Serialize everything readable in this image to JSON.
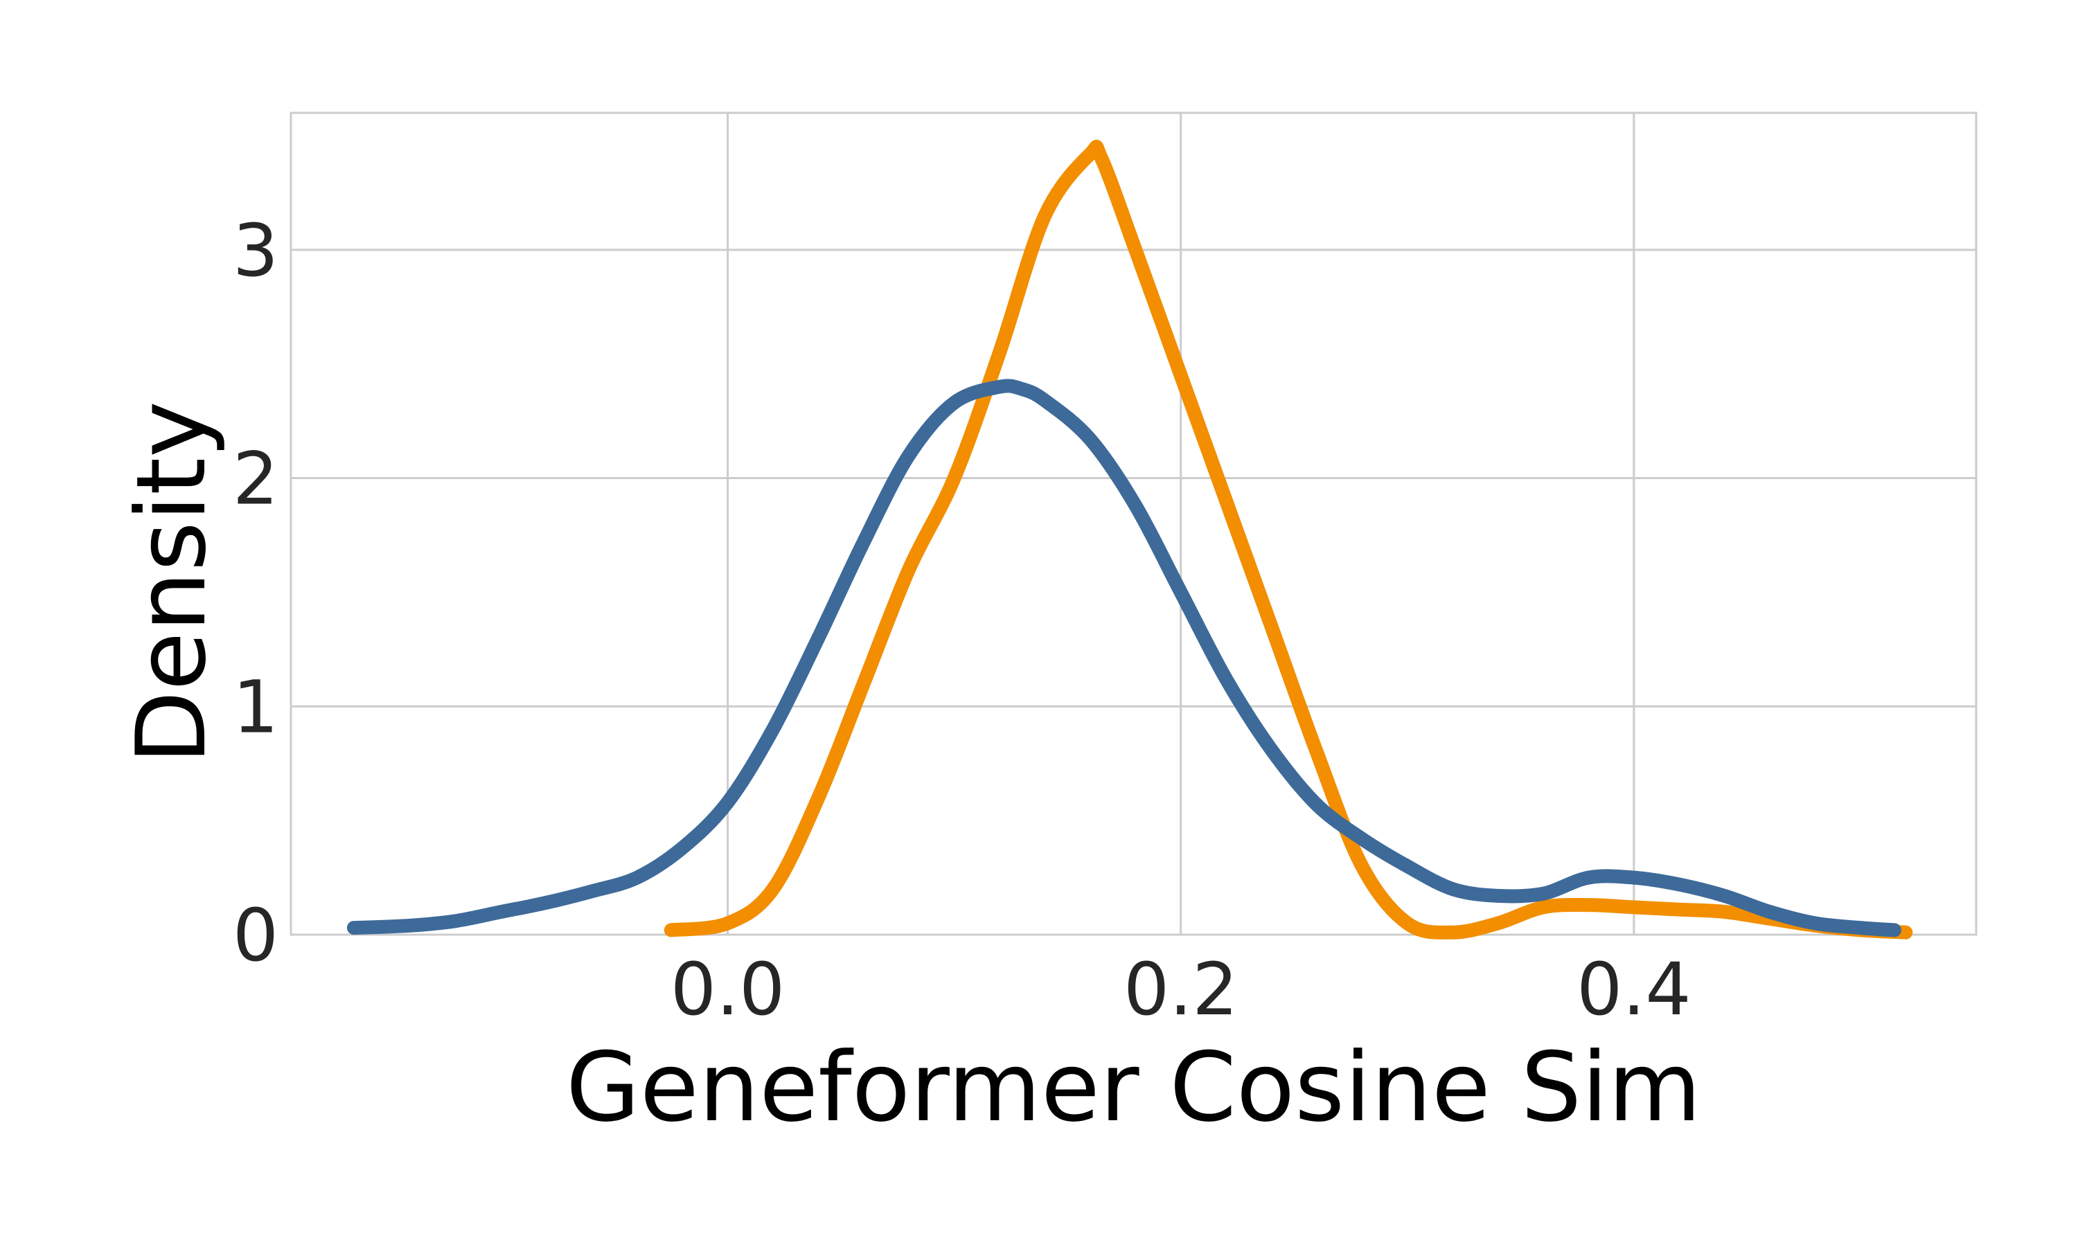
{
  "chart_data": {
    "type": "line",
    "xlabel": "Geneformer Cosine Sim",
    "ylabel": "Density",
    "xlim": [
      -0.1928,
      0.5511
    ],
    "ylim": [
      0,
      3.6
    ],
    "xticks": [
      0.0,
      0.2,
      0.4
    ],
    "xtick_labels": [
      "0.0",
      "0.2",
      "0.4"
    ],
    "yticks": [
      0,
      1,
      2,
      3
    ],
    "ytick_labels": [
      "0",
      "1",
      "2",
      "3"
    ],
    "grid": true,
    "legend": "none",
    "series": [
      {
        "color": "#f28e00",
        "x": [
          -0.025,
          0.0,
          0.02,
          0.04,
          0.06,
          0.08,
          0.1,
          0.12,
          0.14,
          0.16,
          0.165,
          0.18,
          0.2,
          0.22,
          0.24,
          0.26,
          0.28,
          0.3,
          0.32,
          0.34,
          0.36,
          0.38,
          0.4,
          0.42,
          0.44,
          0.46,
          0.48,
          0.5,
          0.52
        ],
        "y": [
          0.02,
          0.05,
          0.2,
          0.6,
          1.1,
          1.6,
          2.0,
          2.55,
          3.15,
          3.42,
          3.4,
          3.0,
          2.45,
          1.9,
          1.35,
          0.8,
          0.3,
          0.05,
          0.01,
          0.05,
          0.12,
          0.13,
          0.12,
          0.11,
          0.1,
          0.07,
          0.04,
          0.02,
          0.01
        ]
      },
      {
        "color": "#3d6a99",
        "x": [
          -0.165,
          -0.14,
          -0.12,
          -0.1,
          -0.08,
          -0.06,
          -0.04,
          -0.02,
          0.0,
          0.02,
          0.04,
          0.06,
          0.08,
          0.1,
          0.12,
          0.13,
          0.14,
          0.16,
          0.18,
          0.2,
          0.22,
          0.24,
          0.26,
          0.28,
          0.3,
          0.32,
          0.34,
          0.36,
          0.38,
          0.4,
          0.42,
          0.44,
          0.46,
          0.48,
          0.5,
          0.515
        ],
        "y": [
          0.03,
          0.04,
          0.06,
          0.1,
          0.14,
          0.19,
          0.25,
          0.38,
          0.58,
          0.9,
          1.3,
          1.72,
          2.1,
          2.33,
          2.4,
          2.39,
          2.34,
          2.17,
          1.88,
          1.5,
          1.12,
          0.81,
          0.57,
          0.42,
          0.3,
          0.2,
          0.17,
          0.18,
          0.25,
          0.25,
          0.22,
          0.17,
          0.1,
          0.05,
          0.03,
          0.02
        ]
      }
    ]
  }
}
